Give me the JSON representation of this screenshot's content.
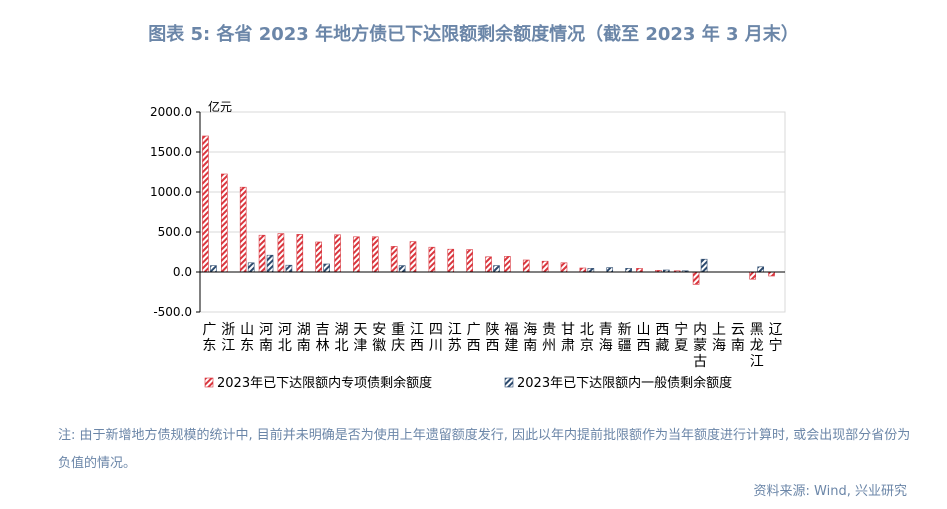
{
  "title": "图表 5:  各省 2023 年地方债已下达限额剩余额度情况（截至 2023 年 3 月末）",
  "note": "注: 由于新增地方债规模的统计中, 目前并未明确是否为使用上年遗留额度发行, 因此以年内提前批限额作为当年额度进行计算时, 或会出现部分省份为负值的情况。",
  "source": "资料来源: Wind, 兴业研究",
  "colors": {
    "special": "#d9363e",
    "general": "#2c4a6e",
    "axis": "#000000",
    "grid": "#d9d9d9",
    "muted": "#6b86a8"
  },
  "chart_data": {
    "type": "bar",
    "unit_label": "亿元",
    "ylim": [
      -500,
      2000
    ],
    "yticks": [
      "2000.0",
      "1500.0",
      "1000.0",
      "500.0",
      "0.0",
      "-500.0"
    ],
    "grid": true,
    "legend_position": "bottom",
    "categories": [
      "广东",
      "浙江",
      "山东",
      "河南",
      "河北",
      "湖南",
      "吉林",
      "湖北",
      "天津",
      "安徽",
      "重庆",
      "江西",
      "四川",
      "江苏",
      "广西",
      "陕西",
      "福建",
      "海南",
      "贵州",
      "甘肃",
      "北京",
      "青海",
      "新疆",
      "山西",
      "西藏",
      "宁夏",
      "内蒙古",
      "上海",
      "云南",
      "黑龙江",
      "辽宁"
    ],
    "series": [
      {
        "name": "2023年已下达限额内专项债剩余额度",
        "values": [
          1700,
          1225,
          1060,
          460,
          480,
          470,
          375,
          465,
          440,
          440,
          320,
          380,
          310,
          285,
          280,
          190,
          195,
          150,
          135,
          115,
          50,
          0,
          0,
          45,
          20,
          15,
          -155,
          0,
          0,
          -90,
          -50
        ]
      },
      {
        "name": "2023年已下达限额内一般债剩余额度",
        "values": [
          80,
          0,
          115,
          210,
          85,
          0,
          100,
          0,
          0,
          0,
          80,
          0,
          0,
          0,
          0,
          80,
          0,
          0,
          0,
          0,
          45,
          55,
          45,
          0,
          25,
          15,
          160,
          0,
          0,
          65,
          0
        ]
      }
    ]
  }
}
